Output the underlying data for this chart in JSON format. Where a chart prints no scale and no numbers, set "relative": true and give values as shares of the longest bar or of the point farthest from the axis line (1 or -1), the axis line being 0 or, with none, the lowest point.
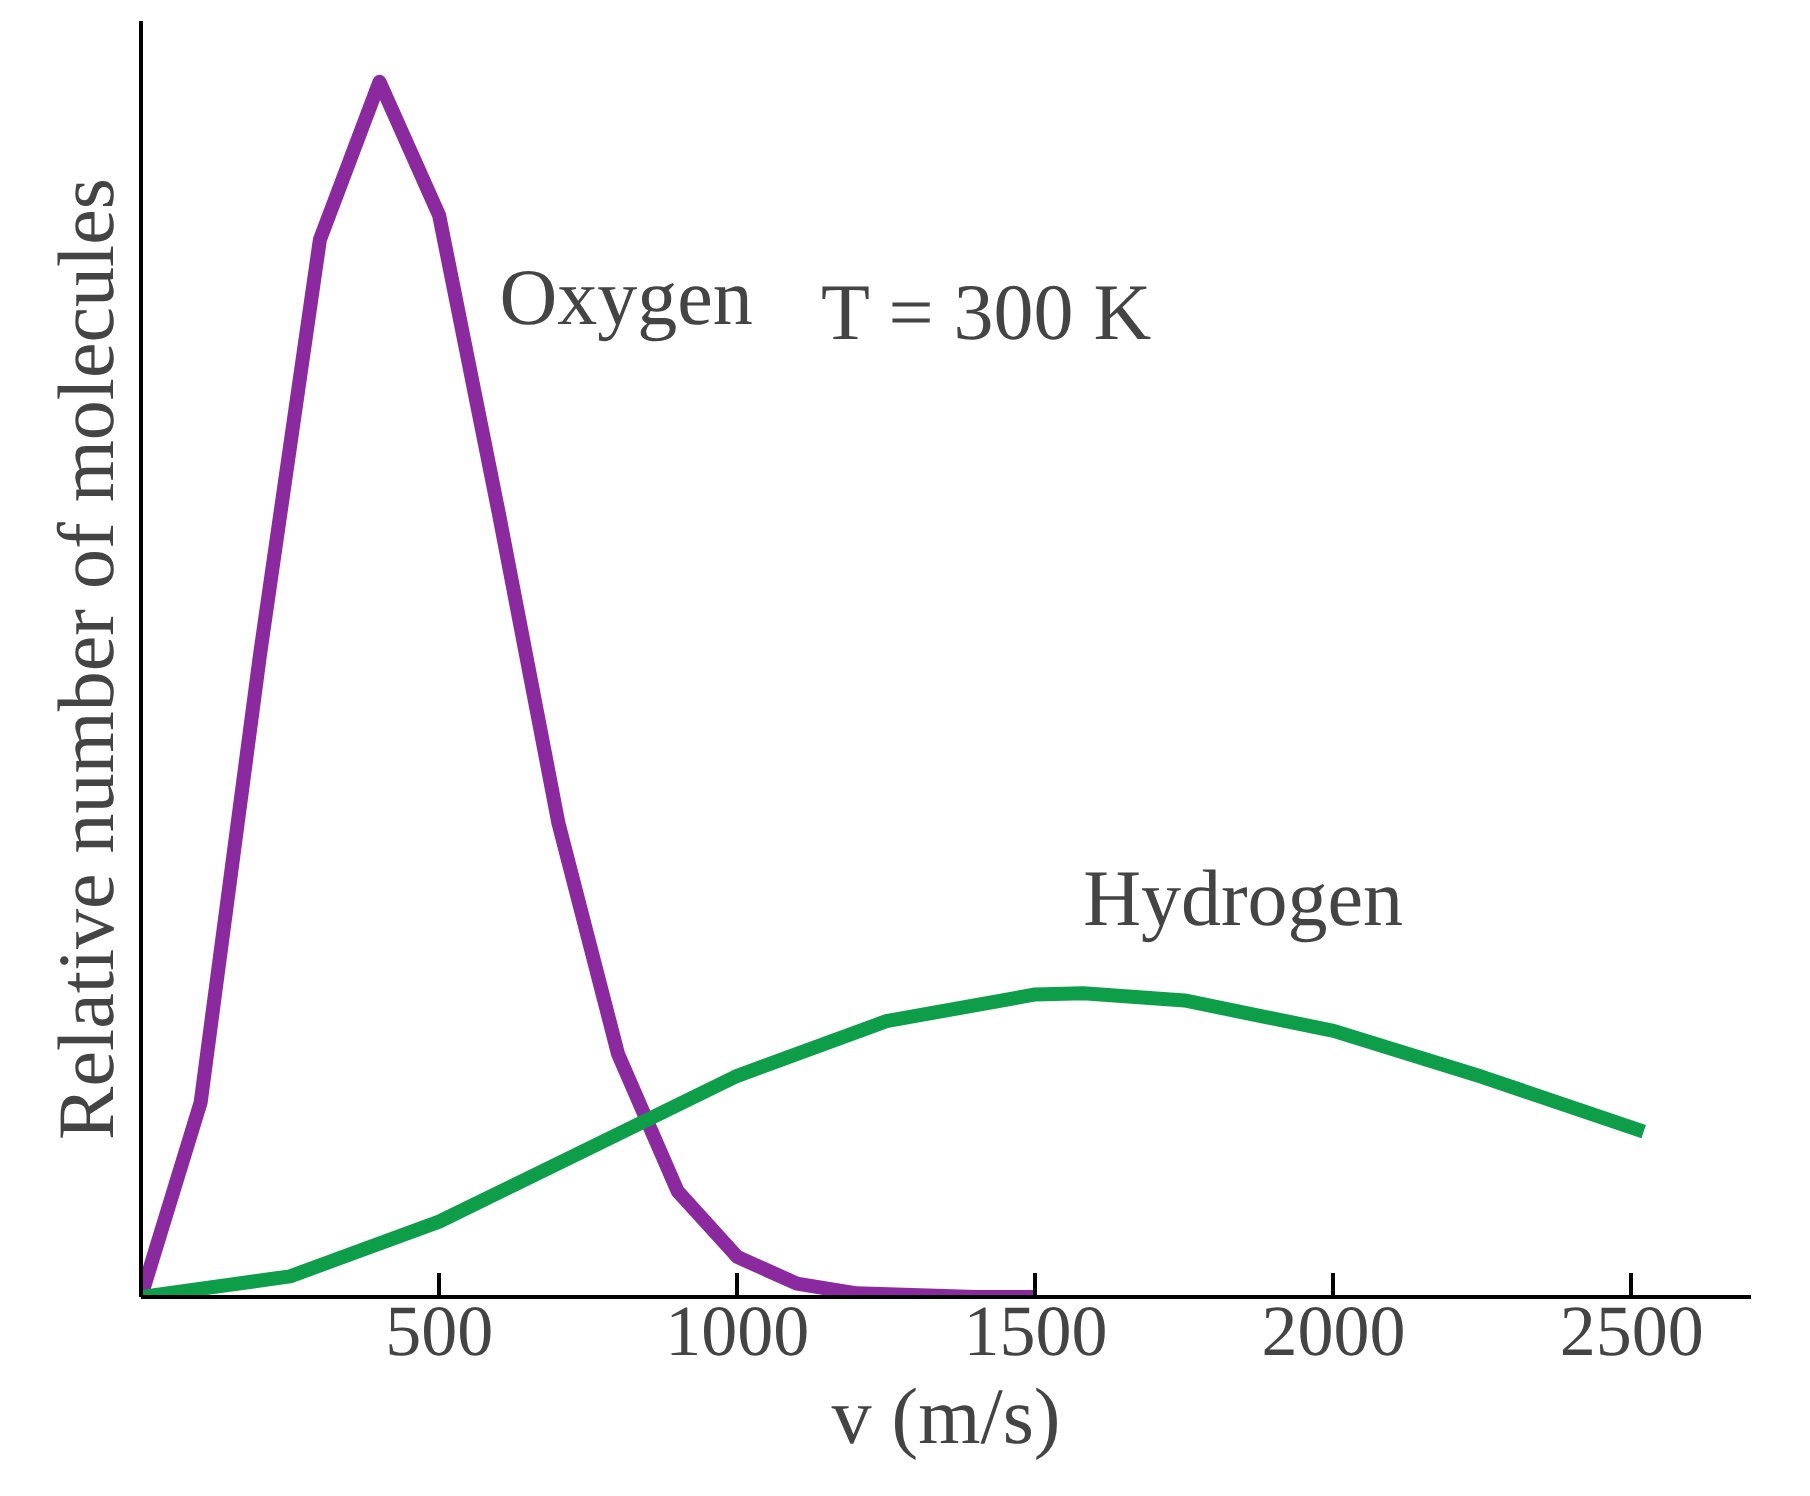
{
  "chart_data": {
    "type": "line",
    "relative": true,
    "xlabel": "v (m/s)",
    "ylabel": "Relative number of molecules",
    "annotations": [
      "T = 300 K"
    ],
    "xlim": [
      0,
      2700
    ],
    "xticks": [
      500,
      1000,
      1500,
      2000,
      2500
    ],
    "grid": false,
    "marker": "none",
    "line_style": "solid",
    "series": [
      {
        "name": "Oxygen",
        "color": "#8b2a9e",
        "x": [
          0,
          100,
          200,
          300,
          400,
          500,
          600,
          700,
          800,
          900,
          1000,
          1100,
          1200,
          1400,
          1500
        ],
        "values": [
          0,
          0.16,
          0.53,
          0.87,
          1,
          0.89,
          0.645,
          0.39,
          0.2,
          0.087,
          0.033,
          0.011,
          0.003,
          0,
          0
        ]
      },
      {
        "name": "Hydrogen",
        "color": "#0e9e4a",
        "x": [
          0,
          250,
          500,
          750,
          1000,
          1250,
          1500,
          1580,
          1750,
          2000,
          2250,
          2520
        ],
        "values": [
          0,
          0.017,
          0.062,
          0.122,
          0.182,
          0.227,
          0.249,
          0.25,
          0.244,
          0.219,
          0.181,
          0.136
        ]
      }
    ]
  }
}
